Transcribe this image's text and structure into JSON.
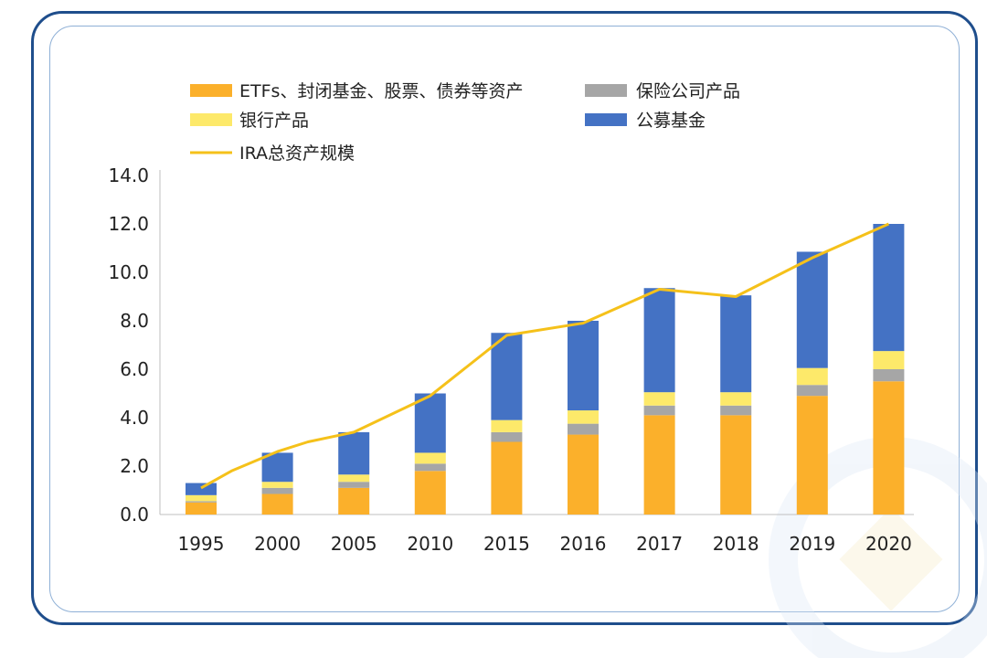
{
  "colors": {
    "frame_outer": "#1f4e8c",
    "frame_inner": "#8fb0d6",
    "etf": "#fbb02b",
    "insurance": "#a6a6a6",
    "bank": "#fde96a",
    "mutual": "#4472c4",
    "total_line": "#f5c11a"
  },
  "chart_data": {
    "type": "bar",
    "stacked": true,
    "categories": [
      "1995",
      "2000",
      "2005",
      "2010",
      "2015",
      "2016",
      "2017",
      "2018",
      "2019",
      "2020"
    ],
    "series": [
      {
        "key": "etf",
        "name": "ETFs、封闭基金、股票、债券等资产",
        "values": [
          0.5,
          0.85,
          1.1,
          1.8,
          3.0,
          3.3,
          4.1,
          4.1,
          4.9,
          5.5
        ]
      },
      {
        "key": "insurance",
        "name": "保险公司产品",
        "values": [
          0.05,
          0.25,
          0.25,
          0.3,
          0.4,
          0.45,
          0.4,
          0.4,
          0.45,
          0.5
        ]
      },
      {
        "key": "bank",
        "name": "银行产品",
        "values": [
          0.25,
          0.25,
          0.3,
          0.45,
          0.5,
          0.55,
          0.55,
          0.55,
          0.7,
          0.75
        ]
      },
      {
        "key": "mutual",
        "name": "公募基金",
        "values": [
          0.5,
          1.2,
          1.75,
          2.45,
          3.6,
          3.7,
          4.3,
          4.0,
          4.8,
          5.25
        ]
      }
    ],
    "line": {
      "name": "IRA总资产规模",
      "x": [
        "1995",
        "1997",
        "2000",
        "2002",
        "2005",
        "2010",
        "2015",
        "2016",
        "2017",
        "2018",
        "2019",
        "2020"
      ],
      "values": [
        1.1,
        1.8,
        2.6,
        3.0,
        3.4,
        4.9,
        7.4,
        7.9,
        9.3,
        9.0,
        10.6,
        12.0
      ]
    },
    "ylim": [
      0,
      14
    ],
    "yticks": [
      "0.0",
      "2.0",
      "4.0",
      "6.0",
      "8.0",
      "10.0",
      "12.0",
      "14.0"
    ],
    "title": "",
    "xlabel": "",
    "ylabel": "",
    "legend_position": "top"
  }
}
